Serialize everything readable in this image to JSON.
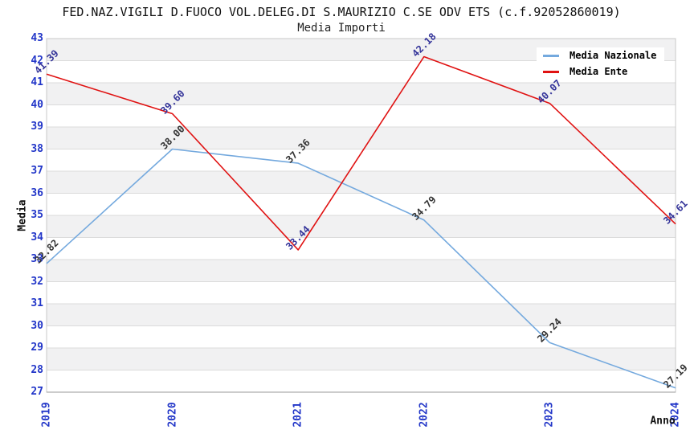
{
  "title": "FED.NAZ.VIGILI D.FUOCO VOL.DELEG.DI S.MAURIZIO C.SE ODV ETS (c.f.92052860019)",
  "subtitle": "Media Importi",
  "colors": {
    "tick_label_blue": "#2236C8",
    "band_gray": "#F1F1F2",
    "band_white": "#FFFFFF",
    "gridline": "#DBDBDB",
    "plot_border": "#C8C8C8",
    "bottom_axis": "#999999",
    "nazionale_line": "#74A9DE",
    "ente_line": "#E01212",
    "nazionale_point_label": "#333333",
    "ente_point_label": "#333399"
  },
  "chart_data": {
    "type": "line",
    "title": "FED.NAZ.VIGILI D.FUOCO VOL.DELEG.DI S.MAURIZIO C.SE ODV ETS (c.f.92052860019)",
    "subtitle": "Media Importi",
    "xlabel": "Anno",
    "ylabel": "Media",
    "x": [
      2019,
      2020,
      2021,
      2022,
      2023,
      2024
    ],
    "xtick_labels": [
      "2019",
      "2020",
      "2021",
      "2022",
      "2023",
      "2024"
    ],
    "ylim": [
      27,
      43
    ],
    "ytick_step": 1,
    "ytick_labels": [
      "27",
      "28",
      "29",
      "30",
      "31",
      "32",
      "33",
      "34",
      "35",
      "36",
      "37",
      "38",
      "39",
      "40",
      "41",
      "42",
      "43"
    ],
    "grid": "horizontal gridlines with alternating gray/white one-unit bands",
    "legend_position": "top-right inside plot",
    "series": [
      {
        "name": "Media Nazionale",
        "color": "#74A9DE",
        "label_color": "#333333",
        "values": [
          32.82,
          38.0,
          37.36,
          34.79,
          29.24,
          27.19
        ]
      },
      {
        "name": "Media Ente",
        "color": "#E01212",
        "label_color": "#333399",
        "values": [
          41.39,
          39.6,
          33.44,
          42.18,
          40.07,
          34.61
        ]
      }
    ]
  }
}
